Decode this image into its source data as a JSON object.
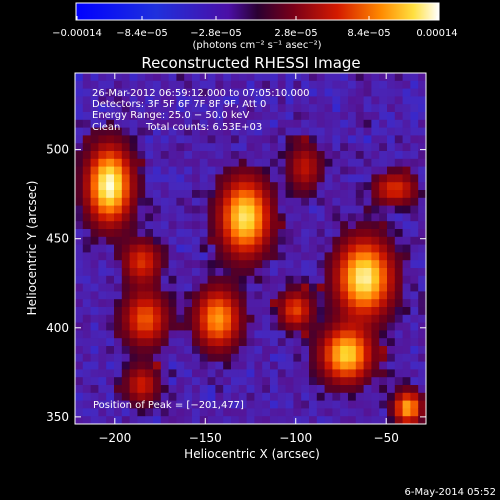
{
  "chart_data": {
    "type": "heatmap",
    "title": "Reconstructed RHESSI Image",
    "xlabel": "Heliocentric X (arcsec)",
    "ylabel": "Heliocentric Y (arcsec)",
    "xlim": [
      -222,
      -28
    ],
    "ylim": [
      346,
      543
    ],
    "xticks": [
      -200,
      -150,
      -100,
      -50
    ],
    "yticks": [
      350,
      400,
      450,
      500
    ],
    "xtick_labels": [
      "−200",
      "−150",
      "−100",
      "−50"
    ],
    "ytick_labels": [
      "350",
      "400",
      "450",
      "500"
    ],
    "colorbar": {
      "range": [
        -0.00014,
        0.00014
      ],
      "tick_labels": [
        "−0.00014",
        "−8.4e−05",
        "−2.8e−05",
        "2.8e−05",
        "8.4e−05",
        "0.00014"
      ],
      "unit_label": "(photons cm⁻² s⁻¹ asec⁻²)"
    },
    "annotations": {
      "time": "26-Mar-2012 06:59:12.000 to 07:05:10.000",
      "detectors": "Detectors: 3F 5F 6F 7F 8F 9F, Att 0",
      "energy": "Energy Range: 25.0 − 50.0 keV",
      "clean_label": "Clean",
      "counts": "Total counts: 6.53E+03",
      "peak": "Position of Peak = [−201,477]"
    },
    "sources": [
      {
        "x": -203,
        "y": 480,
        "peak": 1.0,
        "sx": 8,
        "sy": 14
      },
      {
        "x": -128,
        "y": 462,
        "peak": 0.9,
        "sx": 9,
        "sy": 14
      },
      {
        "x": -185,
        "y": 437,
        "peak": 0.45,
        "sx": 7,
        "sy": 8
      },
      {
        "x": -183,
        "y": 405,
        "peak": 0.55,
        "sx": 8,
        "sy": 10
      },
      {
        "x": -143,
        "y": 405,
        "peak": 0.7,
        "sx": 8,
        "sy": 11
      },
      {
        "x": -100,
        "y": 410,
        "peak": 0.5,
        "sx": 6,
        "sy": 7
      },
      {
        "x": -62,
        "y": 428,
        "peak": 0.95,
        "sx": 10,
        "sy": 14
      },
      {
        "x": -72,
        "y": 385,
        "peak": 0.85,
        "sx": 9,
        "sy": 10
      },
      {
        "x": -45,
        "y": 478,
        "peak": 0.45,
        "sx": 8,
        "sy": 6
      },
      {
        "x": -95,
        "y": 490,
        "peak": 0.35,
        "sx": 6,
        "sy": 9
      },
      {
        "x": -185,
        "y": 368,
        "peak": 0.4,
        "sx": 6,
        "sy": 7
      },
      {
        "x": -38,
        "y": 355,
        "peak": 0.75,
        "sx": 5,
        "sy": 6
      }
    ]
  },
  "footer": {
    "date": "6-May-2014 05:52"
  }
}
